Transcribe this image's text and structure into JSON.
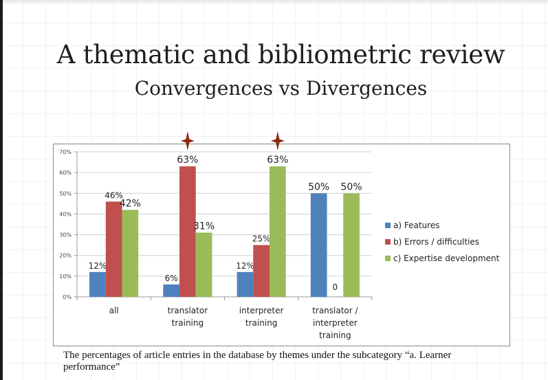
{
  "slide": {
    "title": "A thematic and bibliometric review",
    "subtitle": "Convergences vs Divergences",
    "caption": "The percentages of article entries in the database by themes under the subcategory “a. Learner performance”"
  },
  "chart_data": {
    "type": "bar",
    "categories": [
      [
        "all"
      ],
      [
        "translator",
        "training"
      ],
      [
        "interpreter",
        "training"
      ],
      [
        "translator /",
        "interpreter",
        "training"
      ]
    ],
    "series": [
      {
        "name": "a) Features",
        "color": "#4f81bd",
        "values": [
          12,
          6,
          12,
          50
        ],
        "labels": [
          "12%",
          "6%",
          "12%",
          "50%"
        ]
      },
      {
        "name": "b) Errors / difficulties",
        "color": "#c0504d",
        "values": [
          46,
          63,
          25,
          0
        ],
        "labels": [
          "46%",
          "63%",
          "25%",
          "0"
        ]
      },
      {
        "name": "c) Expertise development",
        "color": "#9bbb59",
        "values": [
          42,
          31,
          63,
          50
        ],
        "labels": [
          "42%",
          "31%",
          "63%",
          "50%"
        ]
      }
    ],
    "ylim": [
      0,
      70
    ],
    "yticks": [
      "0%",
      "10%",
      "20%",
      "30%",
      "40%",
      "50%",
      "60%",
      "70%"
    ],
    "grid": true,
    "legend": "right",
    "highlight_markers": [
      {
        "category": 1,
        "series": 1
      },
      {
        "category": 2,
        "series": 2
      }
    ],
    "highlight_color": "#8b2a10"
  }
}
